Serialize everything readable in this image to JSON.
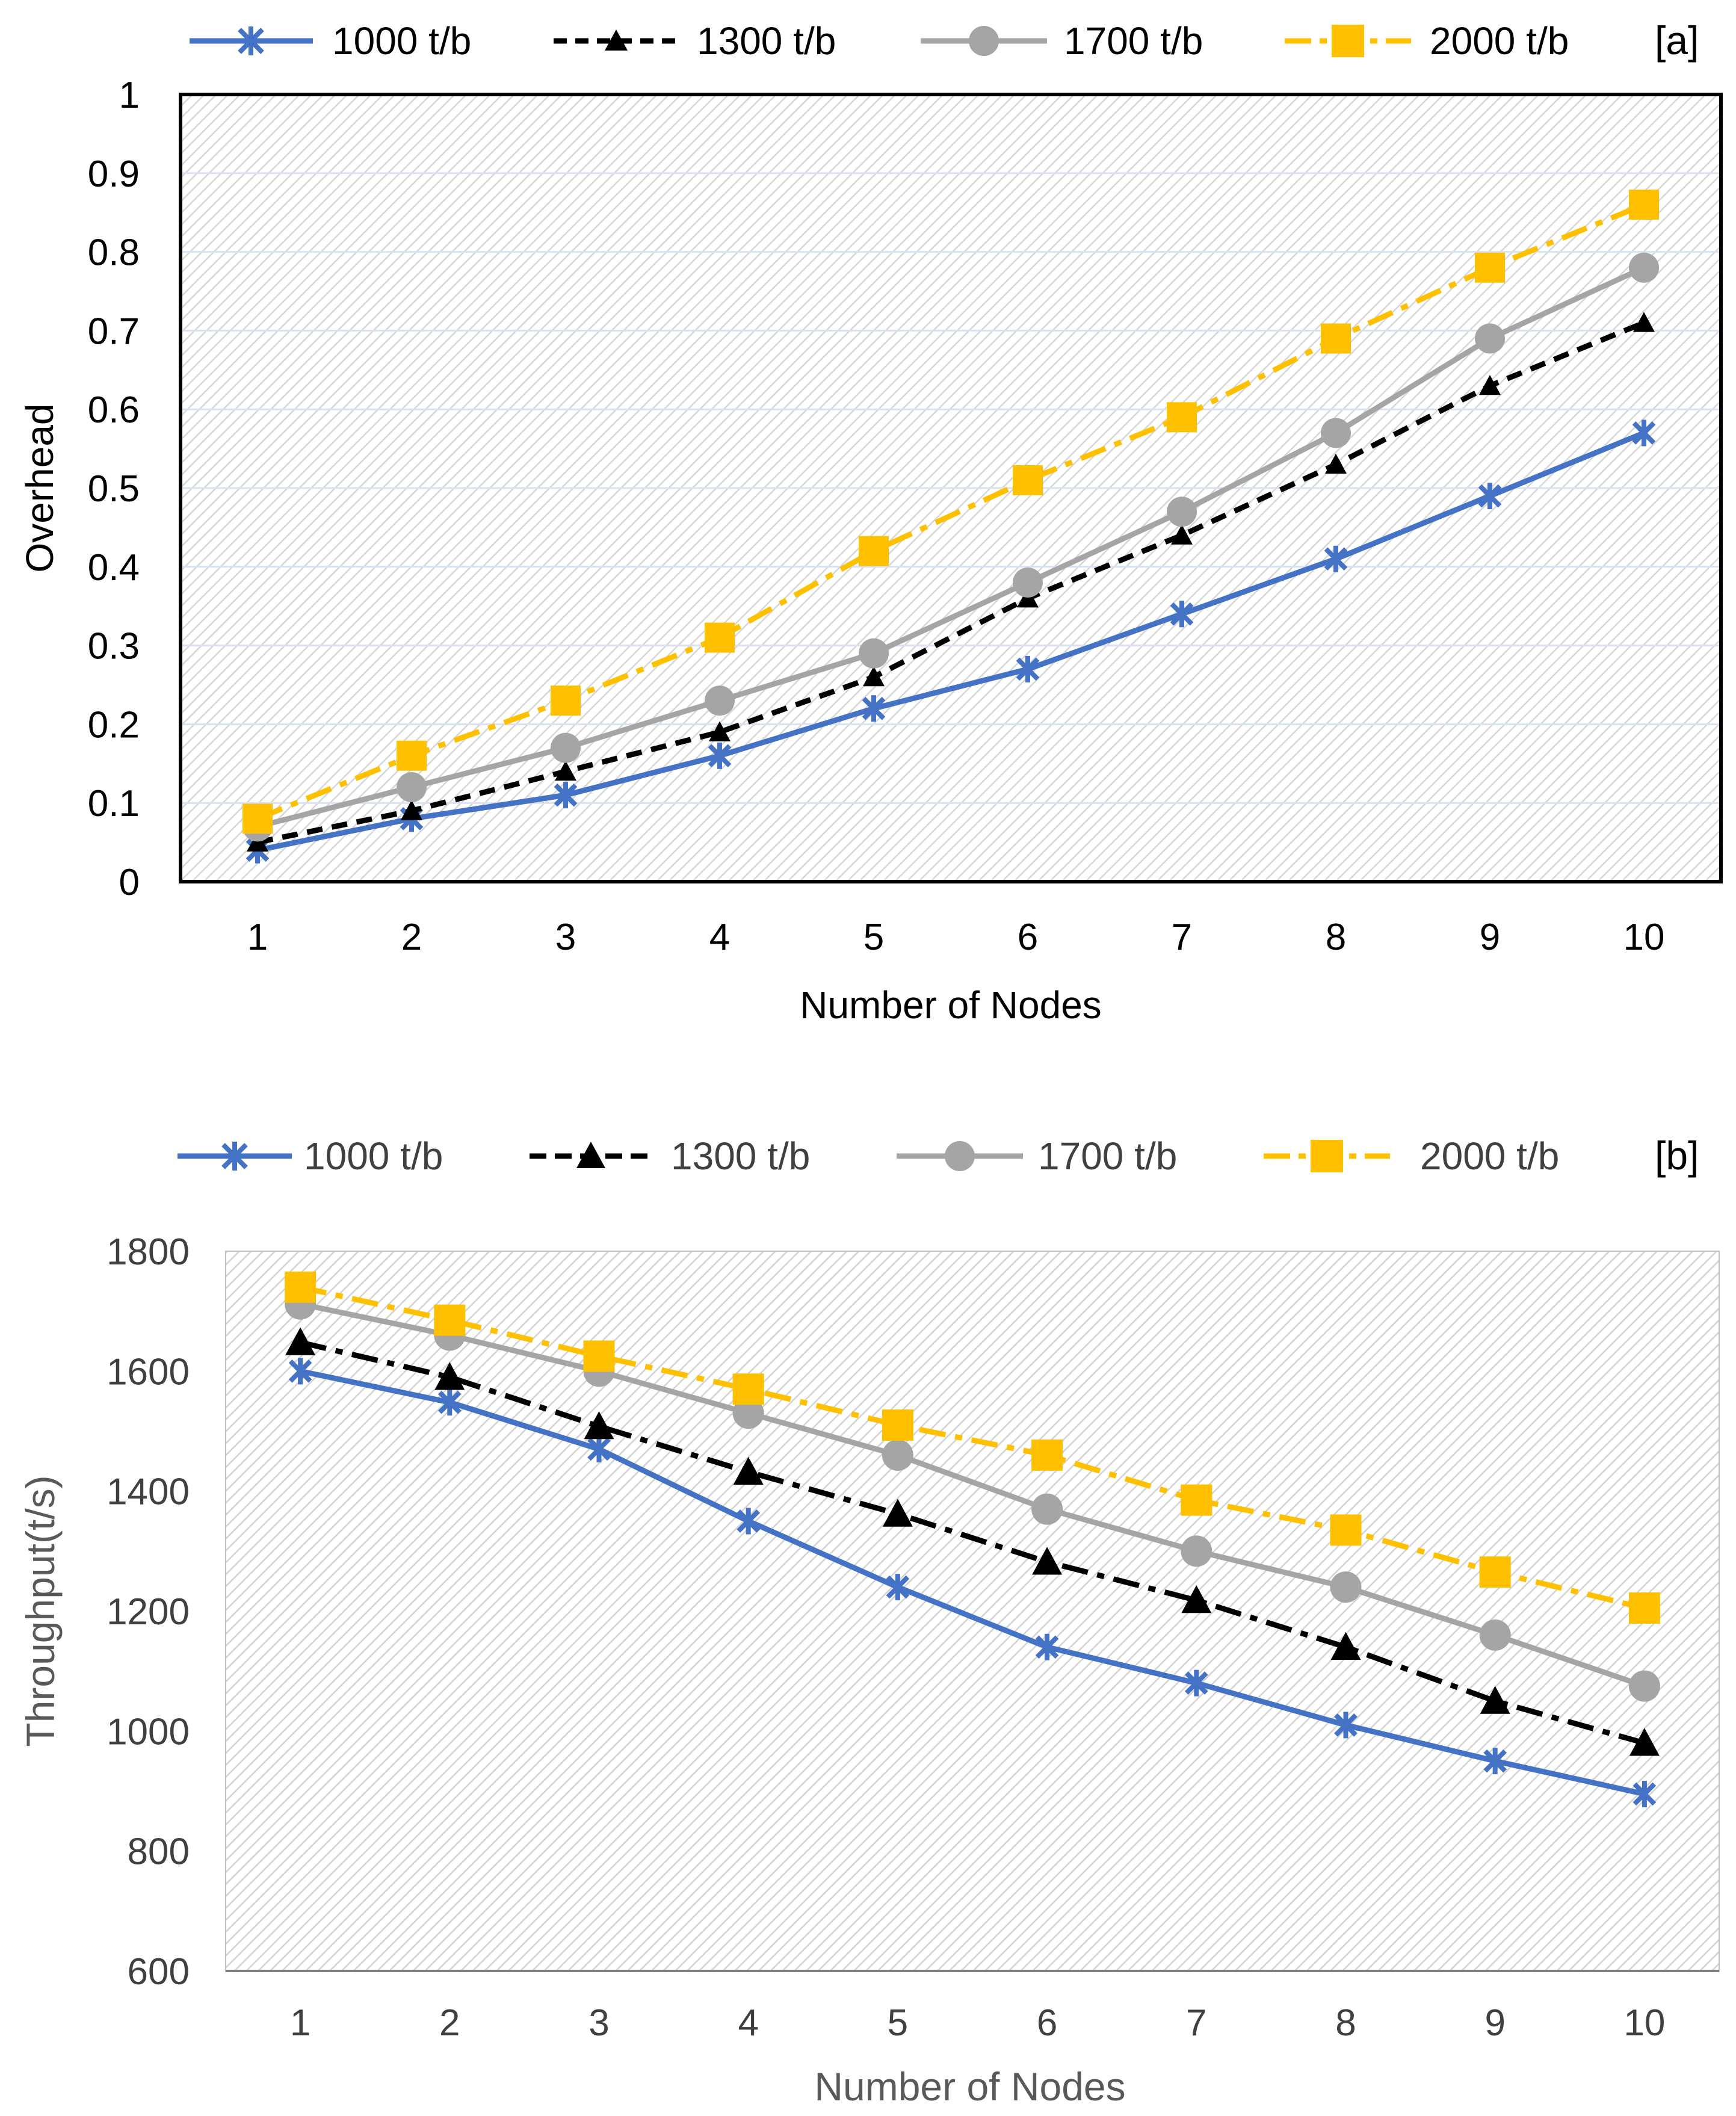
{
  "chart_data": [
    {
      "type": "line",
      "panel_label": "[a]",
      "title": "",
      "xlabel": "Number of Nodes",
      "ylabel": "Overhead",
      "categories": [
        "1",
        "2",
        "3",
        "4",
        "5",
        "6",
        "7",
        "8",
        "9",
        "10"
      ],
      "ylim": [
        0,
        1
      ],
      "yticks": [
        "0",
        "0.1",
        "0.2",
        "0.3",
        "0.4",
        "0.5",
        "0.6",
        "0.7",
        "0.8",
        "0.9",
        "1"
      ],
      "grid": true,
      "legend_position": "top",
      "series": [
        {
          "name": "1000 t/b",
          "values": [
            0.04,
            0.08,
            0.11,
            0.16,
            0.22,
            0.27,
            0.34,
            0.41,
            0.49,
            0.57
          ],
          "color": "#4472C4",
          "marker": "asterisk",
          "dash": "solid"
        },
        {
          "name": "1300 t/b",
          "values": [
            0.05,
            0.09,
            0.14,
            0.19,
            0.26,
            0.36,
            0.44,
            0.53,
            0.63,
            0.71
          ],
          "color": "#000000",
          "marker": "triangle",
          "dash": "dash"
        },
        {
          "name": "1700 t/b",
          "values": [
            0.07,
            0.12,
            0.17,
            0.23,
            0.29,
            0.38,
            0.47,
            0.57,
            0.69,
            0.78
          ],
          "color": "#A5A5A5",
          "marker": "circle",
          "dash": "solid"
        },
        {
          "name": "2000 t/b",
          "values": [
            0.08,
            0.16,
            0.23,
            0.31,
            0.42,
            0.51,
            0.59,
            0.69,
            0.78,
            0.86
          ],
          "color": "#FFC000",
          "marker": "square",
          "dash": "dashdot"
        }
      ]
    },
    {
      "type": "line",
      "panel_label": "[b]",
      "title": "",
      "xlabel": "Number of Nodes",
      "ylabel": "Throughput(t/s)",
      "categories": [
        "1",
        "2",
        "3",
        "4",
        "5",
        "6",
        "7",
        "8",
        "9",
        "10"
      ],
      "ylim": [
        600,
        1800
      ],
      "yticks": [
        "600",
        "800",
        "1000",
        "1200",
        "1400",
        "1600",
        "1800"
      ],
      "grid": false,
      "legend_position": "top",
      "series": [
        {
          "name": "1000 t/b",
          "values": [
            1600,
            1548,
            1470,
            1350,
            1240,
            1140,
            1080,
            1010,
            950,
            895
          ],
          "color": "#4472C4",
          "marker": "asterisk",
          "dash": "solid"
        },
        {
          "name": "1300 t/b",
          "values": [
            1648,
            1590,
            1508,
            1432,
            1362,
            1282,
            1218,
            1140,
            1050,
            980
          ],
          "color": "#000000",
          "marker": "triangle",
          "dash": "dashdot"
        },
        {
          "name": "1700 t/b",
          "values": [
            1712,
            1660,
            1600,
            1530,
            1460,
            1370,
            1300,
            1240,
            1160,
            1075
          ],
          "color": "#A5A5A5",
          "marker": "circle",
          "dash": "solid"
        },
        {
          "name": "2000 t/b",
          "values": [
            1740,
            1685,
            1625,
            1570,
            1510,
            1460,
            1385,
            1335,
            1265,
            1205
          ],
          "color": "#FFC000",
          "marker": "square",
          "dash": "dashdot"
        }
      ]
    }
  ]
}
